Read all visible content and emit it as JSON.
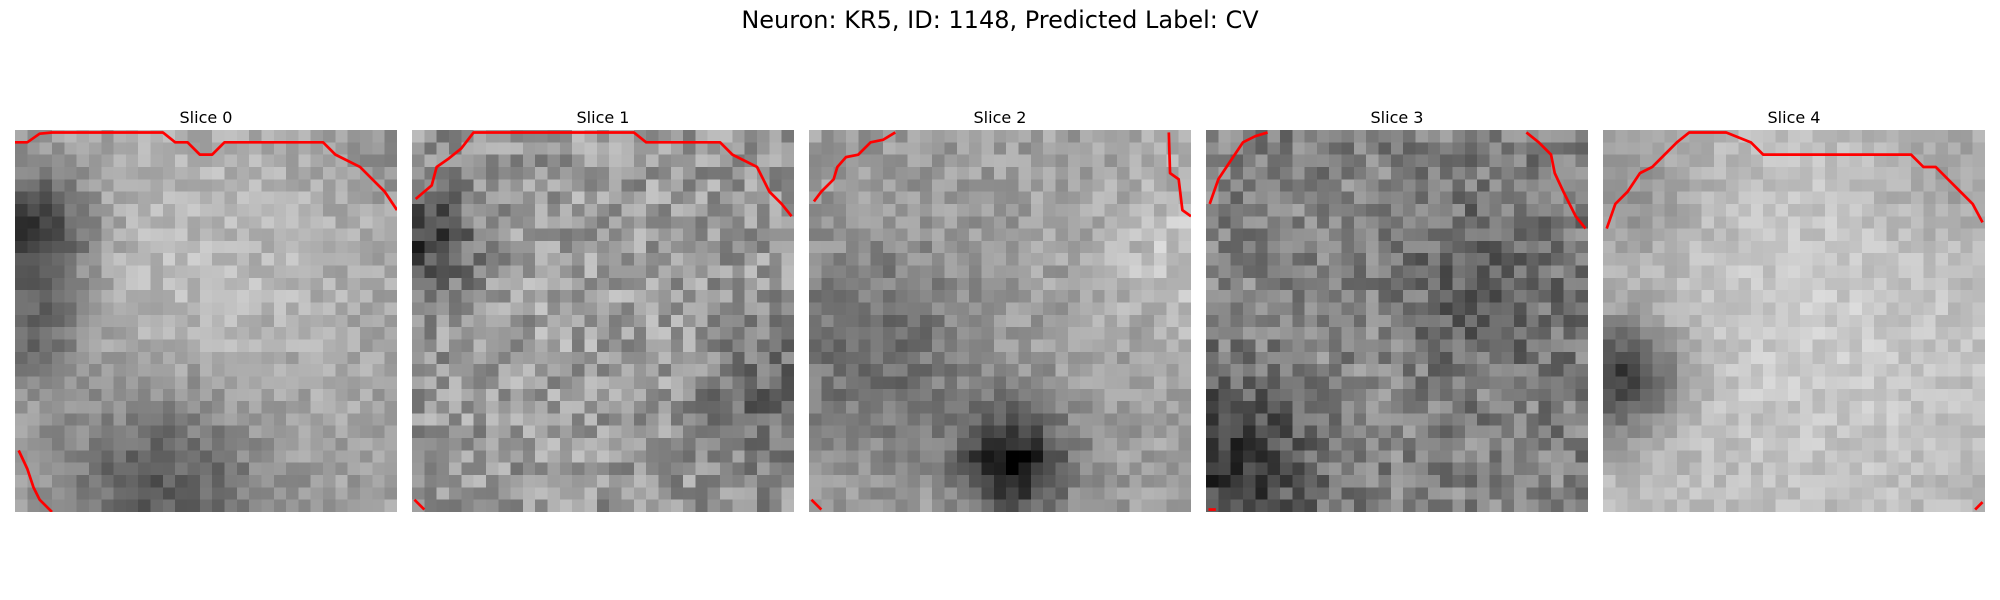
{
  "figure": {
    "title": "Neuron: KR5, ID: 1148, Predicted Label: CV"
  },
  "contour_color": "#ff0000",
  "slices": [
    {
      "label": "Slice 0",
      "contours": [
        [
          [
            0,
            1
          ],
          [
            1,
            1
          ],
          [
            2,
            0.3
          ],
          [
            3,
            0.2
          ],
          [
            12,
            0.2
          ],
          [
            13,
            1
          ],
          [
            14,
            1
          ],
          [
            15,
            2
          ],
          [
            16,
            2
          ],
          [
            17,
            1
          ],
          [
            25,
            1
          ],
          [
            26,
            2
          ],
          [
            28,
            3
          ],
          [
            29,
            4
          ],
          [
            30,
            5
          ],
          [
            31,
            6.5
          ]
        ],
        [
          [
            0.3,
            26
          ],
          [
            1,
            27.5
          ],
          [
            1.5,
            29
          ],
          [
            2,
            30
          ],
          [
            3,
            31
          ]
        ]
      ]
    },
    {
      "label": "Slice 1",
      "contours": [
        [
          [
            0.3,
            5.6
          ],
          [
            1,
            5
          ],
          [
            1.6,
            4.5
          ],
          [
            2,
            3
          ],
          [
            3,
            2.3
          ],
          [
            4,
            1.5
          ],
          [
            5,
            0.2
          ],
          [
            18,
            0.2
          ],
          [
            19,
            1
          ],
          [
            25,
            1
          ],
          [
            26,
            2
          ],
          [
            28,
            3
          ],
          [
            29,
            5
          ],
          [
            30,
            6
          ],
          [
            30.8,
            7
          ]
        ],
        [
          [
            0.2,
            30
          ],
          [
            1,
            30.8
          ]
        ]
      ]
    },
    {
      "label": "Slice 2",
      "contours": [
        [
          [
            0.4,
            5.8
          ],
          [
            1,
            5
          ],
          [
            2,
            4
          ],
          [
            2.3,
            3
          ],
          [
            3,
            2.2
          ],
          [
            4,
            2
          ],
          [
            5,
            1
          ],
          [
            6,
            0.8
          ],
          [
            7,
            0.2
          ]
        ],
        [
          [
            29.2,
            0.2
          ],
          [
            29.3,
            3.5
          ],
          [
            30,
            4
          ],
          [
            30.3,
            6.5
          ],
          [
            31,
            7
          ]
        ],
        [
          [
            0.2,
            30
          ],
          [
            1,
            30.8
          ]
        ]
      ]
    },
    {
      "label": "Slice 3",
      "contours": [
        [
          [
            0.3,
            6
          ],
          [
            1,
            4
          ],
          [
            2,
            2.5
          ],
          [
            3,
            1
          ],
          [
            4,
            0.5
          ],
          [
            5,
            0.2
          ]
        ],
        [
          [
            26,
            0.2
          ],
          [
            27,
            1
          ],
          [
            28,
            2
          ],
          [
            28.3,
            3.5
          ],
          [
            29,
            5
          ],
          [
            29.5,
            6
          ],
          [
            30,
            7
          ],
          [
            30.8,
            8
          ]
        ],
        [
          [
            0.2,
            30.8
          ],
          [
            0.8,
            30.8
          ]
        ]
      ]
    },
    {
      "label": "Slice 4",
      "contours": [
        [
          [
            0.3,
            8
          ],
          [
            1,
            6
          ],
          [
            2,
            5
          ],
          [
            3,
            3.5
          ],
          [
            4,
            3
          ],
          [
            5,
            2
          ],
          [
            6,
            1
          ],
          [
            7,
            0.2
          ],
          [
            10,
            0.2
          ],
          [
            12,
            1
          ],
          [
            13,
            2
          ],
          [
            25,
            2
          ],
          [
            26,
            3
          ],
          [
            27,
            3
          ],
          [
            28,
            4
          ],
          [
            29,
            5
          ],
          [
            30,
            6
          ],
          [
            30.8,
            7.5
          ]
        ],
        [
          [
            30.2,
            30.8
          ],
          [
            30.8,
            30.2
          ]
        ]
      ]
    }
  ]
}
